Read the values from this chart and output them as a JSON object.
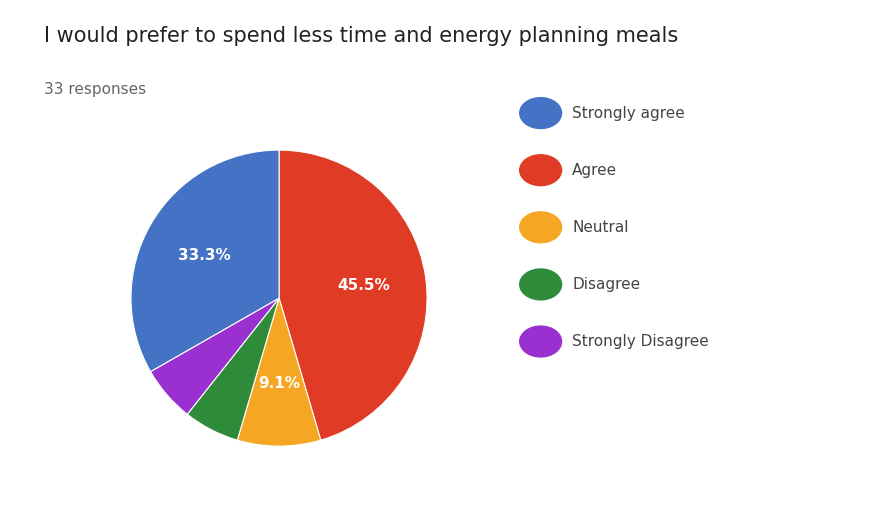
{
  "title": "I would prefer to spend less time and energy planning meals",
  "subtitle": "33 responses",
  "labels": [
    "Strongly agree",
    "Agree",
    "Neutral",
    "Disagree",
    "Strongly Disagree"
  ],
  "values": [
    33.3,
    45.5,
    9.1,
    6.1,
    6.1
  ],
  "colors": [
    "#4472C4",
    "#E03B24",
    "#F5A623",
    "#2E8B3A",
    "#9B30D0"
  ],
  "pct_labels": [
    "33.3%",
    "45.5%",
    "9.1%",
    "",
    ""
  ],
  "title_fontsize": 15,
  "subtitle_fontsize": 11,
  "background_color": "#ffffff",
  "startangle": 90,
  "legend_fontsize": 11,
  "label_fontsize": 11
}
